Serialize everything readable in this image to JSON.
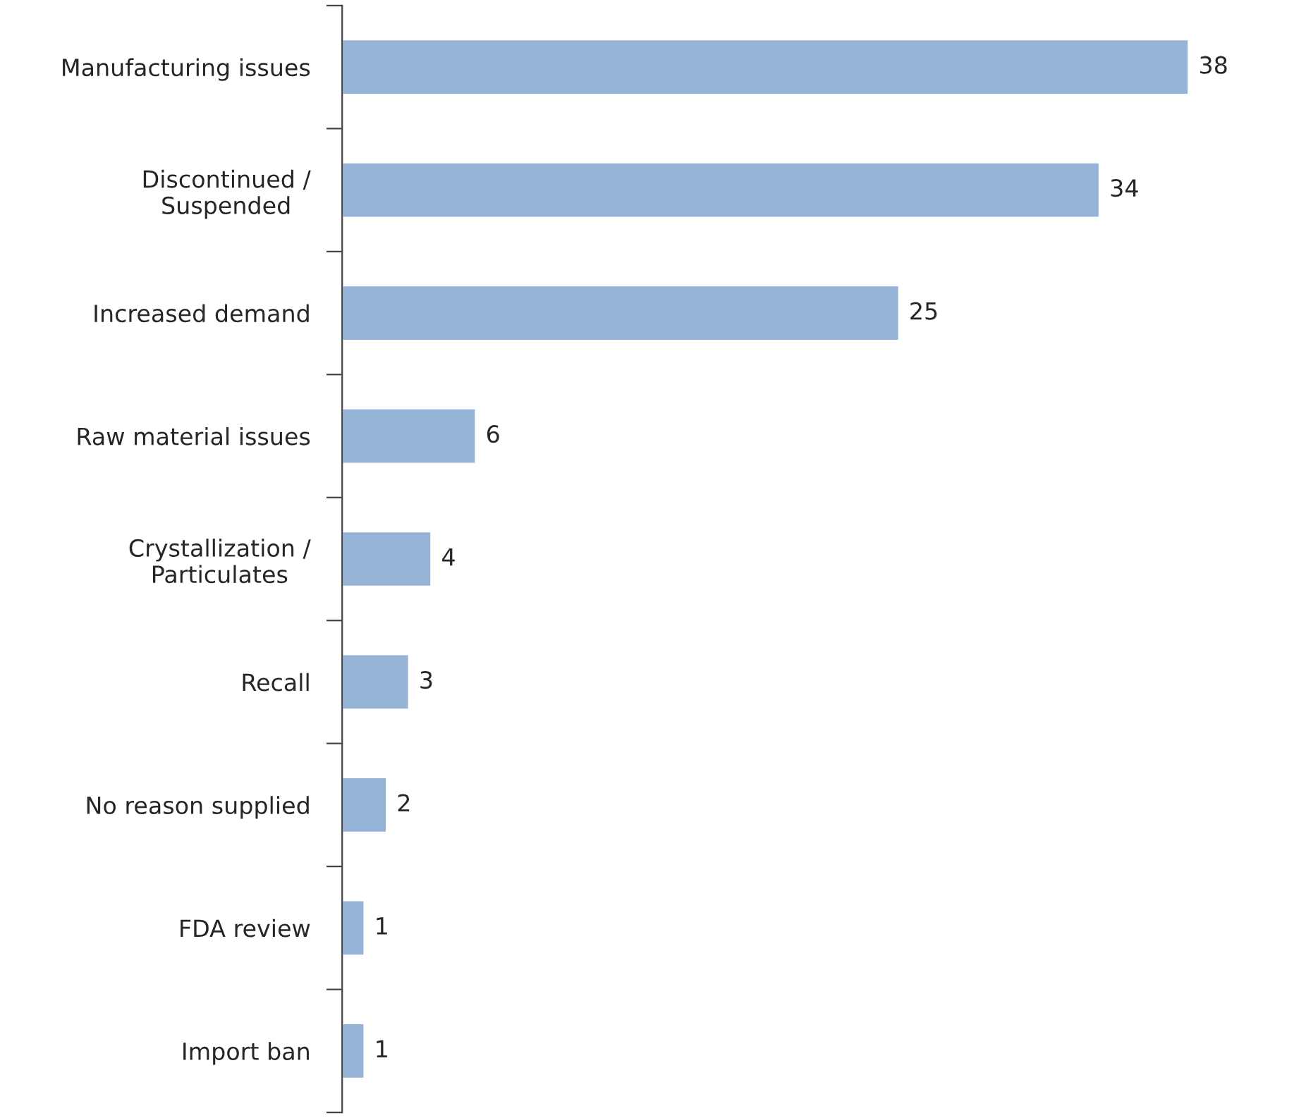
{
  "chart_data": {
    "type": "bar",
    "orientation": "horizontal",
    "categories": [
      "Manufacturing issues",
      "Discontinued /\nSuspended",
      "Increased demand",
      "Raw material issues",
      "Crystallization /\nParticulates",
      "Recall",
      "No reason supplied",
      "FDA review",
      "Import ban"
    ],
    "values": [
      38,
      34,
      25,
      6,
      4,
      3,
      2,
      1,
      1
    ],
    "color": "#95b3d7",
    "data_labels": true,
    "grid": false,
    "legend": false,
    "tick_labels": "y"
  }
}
